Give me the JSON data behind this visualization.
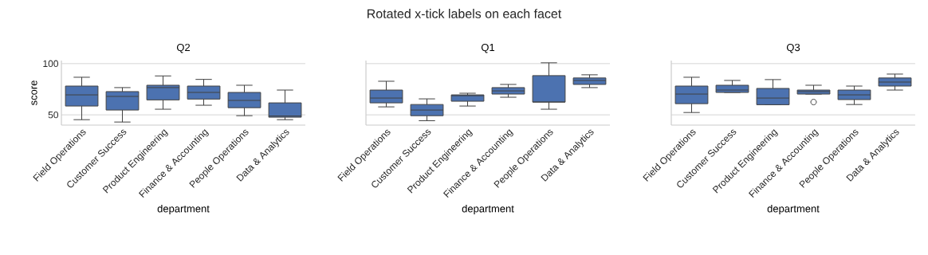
{
  "chart_data": [
    {
      "type": "box",
      "title": "Q2",
      "xlabel": "department",
      "ylabel": "score",
      "annotations": [
        "Rotated x-tick labels on each facet"
      ],
      "categories": [
        "Field Operations",
        "Customer Success",
        "Product Engineering",
        "Finance & Accounting",
        "People Operations",
        "Data & Analytics"
      ],
      "color": "#4c72b0",
      "ylim": [
        40,
        103
      ],
      "yticks": [
        50,
        100
      ],
      "grid": "y",
      "boxes": [
        {
          "low": 45.3,
          "q1": 58.6,
          "median": 69.5,
          "q3": 78.1,
          "high": 86.7
        },
        {
          "low": 43,
          "q1": 54.7,
          "median": 68,
          "q3": 72.7,
          "high": 76.6
        },
        {
          "low": 55.5,
          "q1": 64.6,
          "median": 76.6,
          "q3": 78.9,
          "high": 88
        },
        {
          "low": 59.4,
          "q1": 65.4,
          "median": 71.9,
          "q3": 78.1,
          "high": 84.6
        },
        {
          "low": 49.2,
          "q1": 57,
          "median": 64.1,
          "q3": 71.9,
          "high": 78.9
        },
        {
          "low": 45.3,
          "q1": 47.7,
          "median": 48.9,
          "q3": 61.7,
          "high": 74.2
        }
      ]
    },
    {
      "type": "box",
      "title": "Q1",
      "xlabel": "department",
      "categories": [
        "Field Operations",
        "Customer Success",
        "Product Engineering",
        "Finance & Accounting",
        "People Operations",
        "Data & Analytics"
      ],
      "color": "#4c72b0",
      "ylim": [
        40,
        103
      ],
      "yticks": [
        50,
        100
      ],
      "grid": "y",
      "tick_labels": "x",
      "boxes": [
        {
          "low": 57.8,
          "q1": 61.7,
          "median": 66.4,
          "q3": 74.2,
          "high": 82.8
        },
        {
          "low": 44.3,
          "q1": 49.2,
          "median": 54.7,
          "q3": 60.1,
          "high": 65.6
        },
        {
          "low": 58.6,
          "q1": 63.3,
          "median": 68.7,
          "q3": 69.5,
          "high": 71.1
        },
        {
          "low": 67.2,
          "q1": 70.3,
          "median": 73.4,
          "q3": 76.6,
          "high": 79.7
        },
        {
          "low": 55.5,
          "q1": 62.5,
          "median": 62.5,
          "q3": 88.3,
          "high": 100.8
        },
        {
          "low": 76.6,
          "q1": 79.7,
          "median": 83.6,
          "q3": 86,
          "high": 89.1
        }
      ]
    },
    {
      "type": "box",
      "title": "Q3",
      "xlabel": "department",
      "categories": [
        "Field Operations",
        "Customer Success",
        "Product Engineering",
        "Finance & Accounting",
        "People Operations",
        "Data & Analytics"
      ],
      "color": "#4c72b0",
      "ylim": [
        40,
        103
      ],
      "yticks": [
        50,
        100
      ],
      "grid": "y",
      "tick_labels": "x",
      "boxes": [
        {
          "low": 52.3,
          "q1": 60.9,
          "median": 70.3,
          "q3": 78.1,
          "high": 86.7
        },
        {
          "low": 71.9,
          "q1": 71.9,
          "median": 74.2,
          "q3": 78.9,
          "high": 83.6
        },
        {
          "low": 59.9,
          "q1": 59.9,
          "median": 66.4,
          "q3": 75.8,
          "high": 84.4
        },
        {
          "low": 70.3,
          "q1": 70.3,
          "median": 72.7,
          "q3": 74.2,
          "high": 78.9,
          "outliers": [
            62.5
          ]
        },
        {
          "low": 60.1,
          "q1": 64.9,
          "median": 69.5,
          "q3": 74.2,
          "high": 78.1
        },
        {
          "low": 74.2,
          "q1": 78.1,
          "median": 82,
          "q3": 86,
          "high": 89.8
        }
      ]
    }
  ]
}
